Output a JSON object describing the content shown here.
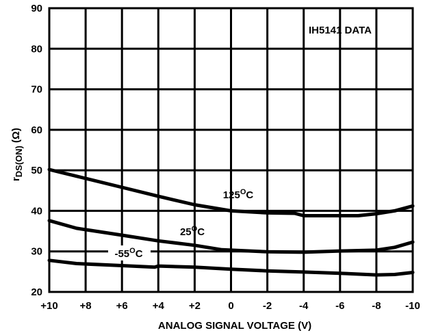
{
  "chart_data": {
    "type": "line",
    "title": "",
    "xlabel": "ANALOG SIGNAL VOLTAGE (V)",
    "ylabel": {
      "main": "r",
      "subscript": "DS(ON)",
      "unit": "(Ω)"
    },
    "xlim": [
      10,
      -10
    ],
    "ylim": [
      20,
      90
    ],
    "grid": true,
    "x_ticks": [
      10,
      8,
      6,
      4,
      2,
      0,
      -2,
      -4,
      -6,
      -8,
      -10
    ],
    "x_tick_labels": [
      "+10",
      "+8",
      "+6",
      "+4",
      "+2",
      "0",
      "-2",
      "-4",
      "-6",
      "-8",
      "-10"
    ],
    "y_ticks": [
      20,
      30,
      40,
      50,
      60,
      70,
      80,
      90
    ],
    "y_tick_labels": [
      "20",
      "30",
      "40",
      "50",
      "60",
      "70",
      "80",
      "90"
    ],
    "annotation": "IH5141 DATA",
    "series": [
      {
        "name": "125°C",
        "label_main": "125",
        "label_sup": "O",
        "label_unit": "C",
        "points": [
          [
            10,
            50.2
          ],
          [
            8,
            48
          ],
          [
            6,
            45.8
          ],
          [
            4,
            43.6
          ],
          [
            2,
            41.5
          ],
          [
            0,
            40
          ],
          [
            -2,
            39.5
          ],
          [
            -3.5,
            39.4
          ],
          [
            -4,
            38.8
          ],
          [
            -6,
            38.8
          ],
          [
            -7,
            38.8
          ],
          [
            -8,
            39.3
          ],
          [
            -9,
            40
          ],
          [
            -10,
            41.2
          ]
        ]
      },
      {
        "name": "25°C",
        "label_main": "25",
        "label_sup": "O",
        "label_unit": "C",
        "points": [
          [
            10,
            37.6
          ],
          [
            8.5,
            35.7
          ],
          [
            6,
            34
          ],
          [
            4,
            32.6
          ],
          [
            2,
            31.5
          ],
          [
            0.5,
            30.4
          ],
          [
            -2,
            29.9
          ],
          [
            -4,
            29.8
          ],
          [
            -6,
            30.1
          ],
          [
            -8,
            30.3
          ],
          [
            -9,
            31
          ],
          [
            -10,
            32.3
          ]
        ]
      },
      {
        "name": "-55°C",
        "label_main": "-55",
        "label_sup": "O",
        "label_unit": "C",
        "points": [
          [
            10,
            27.8
          ],
          [
            8.5,
            27
          ],
          [
            6,
            26.5
          ],
          [
            4.2,
            26.1
          ],
          [
            4,
            26.4
          ],
          [
            2,
            26.1
          ],
          [
            0,
            25.6
          ],
          [
            -2,
            25.2
          ],
          [
            -4,
            24.9
          ],
          [
            -6,
            24.6
          ],
          [
            -8,
            24.2
          ],
          [
            -9,
            24.3
          ],
          [
            -10,
            24.8
          ]
        ]
      }
    ]
  }
}
